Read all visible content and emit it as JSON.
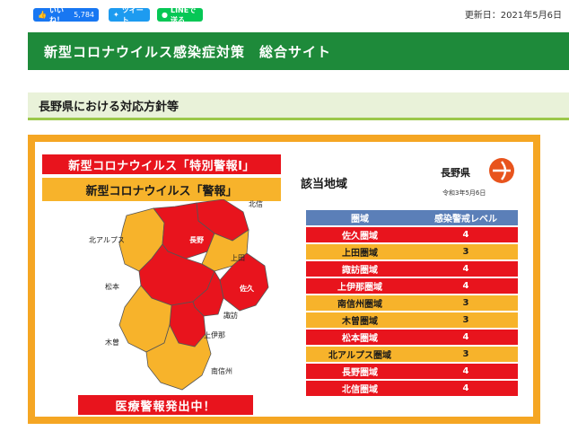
{
  "topbar": {
    "sns": [
      {
        "label": "いいね！",
        "count": "5,784",
        "icon": "thumbs-up-icon"
      },
      {
        "label": "ツイート",
        "icon": "twitter-bird-icon"
      },
      {
        "label": "LINEで送る",
        "icon": "line-icon"
      }
    ],
    "updated": "更新日：2021年5月6日"
  },
  "banner": {
    "title": "新型コロナウイルス感染症対策　総合サイト"
  },
  "section": {
    "title": "長野県における対応方針等"
  },
  "panel": {
    "alert_special": "新型コロナウイルス「特別警報Ⅰ」",
    "alert_warn": "新型コロナウイルス「警報」",
    "medical_alert": "医療警報発出中！",
    "area_title": "該当地域",
    "logo": {
      "name": "長野県",
      "date": "令和3年5月6日"
    },
    "map_labels": {
      "hokushin": "北信",
      "nagano": "長野",
      "ueda": "上田",
      "kita_alps": "北アルプス",
      "matsumoto": "松本",
      "saku": "佐久",
      "suwa": "諏訪",
      "kamiina": "上伊那",
      "kiso": "木曽",
      "minami_shinshu": "南信州"
    },
    "table": {
      "headers": [
        "圏域",
        "感染警戒レベル"
      ],
      "rows": [
        {
          "area": "佐久圏域",
          "level": "4",
          "status": "red"
        },
        {
          "area": "上田圏域",
          "level": "3",
          "status": "yellow"
        },
        {
          "area": "諏訪圏域",
          "level": "4",
          "status": "red"
        },
        {
          "area": "上伊那圏域",
          "level": "4",
          "status": "red"
        },
        {
          "area": "南信州圏域",
          "level": "3",
          "status": "yellow"
        },
        {
          "area": "木曽圏域",
          "level": "3",
          "status": "yellow"
        },
        {
          "area": "松本圏域",
          "level": "4",
          "status": "red"
        },
        {
          "area": "北アルプス圏域",
          "level": "3",
          "status": "yellow"
        },
        {
          "area": "長野圏域",
          "level": "4",
          "status": "red"
        },
        {
          "area": "北信圏域",
          "level": "4",
          "status": "red"
        }
      ]
    }
  },
  "colors": {
    "red": "#e8141d",
    "yellow": "#f7b32b",
    "green": "#1e8a3a",
    "header_blue": "#5b7fb8"
  }
}
